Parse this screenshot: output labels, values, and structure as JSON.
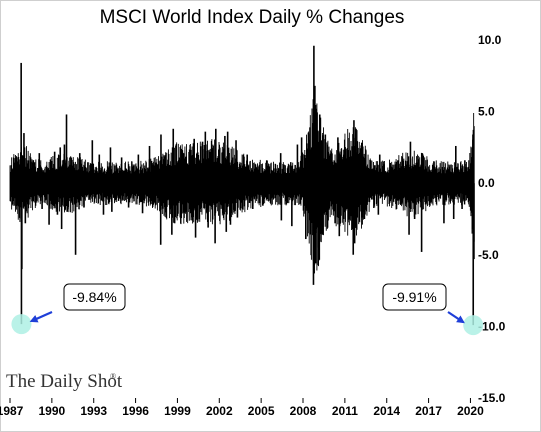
{
  "chart_data": {
    "type": "line",
    "title": "MSCI World Index Daily % Changes",
    "xlabel": "",
    "ylabel": "",
    "xlim": [
      1987.0,
      2020.9
    ],
    "ylim": [
      -15.0,
      10.0
    ],
    "x_ticks": [
      {
        "value": 1987,
        "label": "1987"
      },
      {
        "value": 1990,
        "label": "1990"
      },
      {
        "value": 1993,
        "label": "1993"
      },
      {
        "value": 1996,
        "label": "1996"
      },
      {
        "value": 1999,
        "label": "1999"
      },
      {
        "value": 2002,
        "label": "2002"
      },
      {
        "value": 2005,
        "label": "2005"
      },
      {
        "value": 2008,
        "label": "2008"
      },
      {
        "value": 2011,
        "label": "2011"
      },
      {
        "value": 2014,
        "label": "2014"
      },
      {
        "value": 2017,
        "label": "2017"
      },
      {
        "value": 2020,
        "label": "2020"
      }
    ],
    "y_ticks": [
      {
        "value": 10,
        "label": "10.0"
      },
      {
        "value": 5,
        "label": "5.0"
      },
      {
        "value": 0,
        "label": "0.0"
      },
      {
        "value": -5,
        "label": "-5.0"
      },
      {
        "value": -10,
        "label": "-10.0"
      },
      {
        "value": -15,
        "label": "-15.0"
      }
    ],
    "grid": false,
    "legend": "none",
    "series": [
      {
        "color": "#000000",
        "spikes": [
          {
            "x": 1987.3,
            "y": 1.2
          },
          {
            "x": 1987.5,
            "y": -1.0
          },
          {
            "x": 1987.8,
            "y": 8.4
          },
          {
            "x": 1987.82,
            "y": -9.84
          },
          {
            "x": 1987.85,
            "y": -6.0
          },
          {
            "x": 1988.0,
            "y": 3.5
          },
          {
            "x": 1988.1,
            "y": -2.8
          },
          {
            "x": 1988.5,
            "y": 1.5
          },
          {
            "x": 1989.1,
            "y": 2.1
          },
          {
            "x": 1989.3,
            "y": -1.8
          },
          {
            "x": 1989.8,
            "y": -2.9
          },
          {
            "x": 1990.2,
            "y": 2.2
          },
          {
            "x": 1990.4,
            "y": -2.2
          },
          {
            "x": 1990.6,
            "y": 2.5
          },
          {
            "x": 1990.7,
            "y": -3.2
          },
          {
            "x": 1990.9,
            "y": 2.7
          },
          {
            "x": 1991.05,
            "y": 4.8
          },
          {
            "x": 1991.1,
            "y": -2.0
          },
          {
            "x": 1991.7,
            "y": -5.0
          },
          {
            "x": 1992.0,
            "y": 2.1
          },
          {
            "x": 1992.3,
            "y": -1.7
          },
          {
            "x": 1992.9,
            "y": 3.0
          },
          {
            "x": 1993.4,
            "y": 2.0
          },
          {
            "x": 1993.7,
            "y": -2.2
          },
          {
            "x": 1994.2,
            "y": 2.5
          },
          {
            "x": 1994.3,
            "y": -2.0
          },
          {
            "x": 1995.0,
            "y": 1.8
          },
          {
            "x": 1995.5,
            "y": -1.7
          },
          {
            "x": 1996.2,
            "y": 2.0
          },
          {
            "x": 1996.5,
            "y": -2.1
          },
          {
            "x": 1997.0,
            "y": 2.6
          },
          {
            "x": 1997.8,
            "y": -4.3
          },
          {
            "x": 1997.82,
            "y": 3.4
          },
          {
            "x": 1998.6,
            "y": -3.6
          },
          {
            "x": 1998.7,
            "y": 3.8
          },
          {
            "x": 1998.8,
            "y": -2.8
          },
          {
            "x": 1999.3,
            "y": 2.4
          },
          {
            "x": 1999.6,
            "y": -2.0
          },
          {
            "x": 2000.2,
            "y": 3.1
          },
          {
            "x": 2000.3,
            "y": -3.8
          },
          {
            "x": 2000.8,
            "y": 2.9
          },
          {
            "x": 2001.0,
            "y": 3.6
          },
          {
            "x": 2001.2,
            "y": -3.1
          },
          {
            "x": 2001.7,
            "y": -4.2
          },
          {
            "x": 2001.75,
            "y": 3.8
          },
          {
            "x": 2002.4,
            "y": 3.3
          },
          {
            "x": 2002.5,
            "y": -3.4
          },
          {
            "x": 2002.6,
            "y": 3.6
          },
          {
            "x": 2002.8,
            "y": -2.9
          },
          {
            "x": 2003.2,
            "y": 3.0
          },
          {
            "x": 2003.3,
            "y": -2.4
          },
          {
            "x": 2004.0,
            "y": 2.0
          },
          {
            "x": 2004.4,
            "y": -1.8
          },
          {
            "x": 2005.4,
            "y": 1.6
          },
          {
            "x": 2006.4,
            "y": 2.1
          },
          {
            "x": 2006.45,
            "y": -2.6
          },
          {
            "x": 2007.2,
            "y": -3.0
          },
          {
            "x": 2007.6,
            "y": 2.7
          },
          {
            "x": 2007.9,
            "y": 3.2
          },
          {
            "x": 2008.2,
            "y": -3.9
          },
          {
            "x": 2008.5,
            "y": 3.9
          },
          {
            "x": 2008.7,
            "y": 4.2
          },
          {
            "x": 2008.75,
            "y": -7.1
          },
          {
            "x": 2008.78,
            "y": 9.6
          },
          {
            "x": 2008.8,
            "y": -6.3
          },
          {
            "x": 2008.85,
            "y": 6.8
          },
          {
            "x": 2008.9,
            "y": -5.6
          },
          {
            "x": 2008.95,
            "y": 5.2
          },
          {
            "x": 2009.1,
            "y": -4.5
          },
          {
            "x": 2009.2,
            "y": 4.8
          },
          {
            "x": 2009.4,
            "y": -3.6
          },
          {
            "x": 2009.6,
            "y": 3.4
          },
          {
            "x": 2010.3,
            "y": -2.8
          },
          {
            "x": 2010.5,
            "y": 3.2
          },
          {
            "x": 2010.6,
            "y": -3.7
          },
          {
            "x": 2011.2,
            "y": 2.3
          },
          {
            "x": 2011.6,
            "y": -5.0
          },
          {
            "x": 2011.65,
            "y": 4.4
          },
          {
            "x": 2011.7,
            "y": -4.2
          },
          {
            "x": 2011.8,
            "y": 3.8
          },
          {
            "x": 2012.4,
            "y": -2.5
          },
          {
            "x": 2012.5,
            "y": 2.3
          },
          {
            "x": 2013.4,
            "y": -2.2
          },
          {
            "x": 2013.5,
            "y": 2.0
          },
          {
            "x": 2014.7,
            "y": -1.8
          },
          {
            "x": 2014.8,
            "y": 1.6
          },
          {
            "x": 2015.6,
            "y": -3.6
          },
          {
            "x": 2015.7,
            "y": 2.9
          },
          {
            "x": 2016.0,
            "y": -2.5
          },
          {
            "x": 2016.5,
            "y": -4.8
          },
          {
            "x": 2016.55,
            "y": 2.1
          },
          {
            "x": 2017.5,
            "y": 1.0
          },
          {
            "x": 2018.1,
            "y": -2.8
          },
          {
            "x": 2018.8,
            "y": -2.5
          },
          {
            "x": 2018.95,
            "y": 2.6
          },
          {
            "x": 2019.4,
            "y": -1.8
          },
          {
            "x": 2019.6,
            "y": 1.6
          },
          {
            "x": 2020.15,
            "y": -3.2
          },
          {
            "x": 2020.18,
            "y": 3.4
          },
          {
            "x": 2020.2,
            "y": -9.91
          },
          {
            "x": 2020.22,
            "y": 3.0
          },
          {
            "x": 2020.25,
            "y": -5.3
          }
        ]
      }
    ],
    "annotations": [
      {
        "text": "-9.84%",
        "x": 1987.82,
        "y": -9.84
      },
      {
        "text": "-9.91%",
        "x": 2020.2,
        "y": -9.91
      }
    ]
  },
  "brand": "The Daily Shot",
  "brand_mark": "®",
  "colors": {
    "line": "#000000",
    "highlight": "#aef0e4",
    "arrow": "#1f3fd8",
    "frame": "#cfcfcf"
  }
}
